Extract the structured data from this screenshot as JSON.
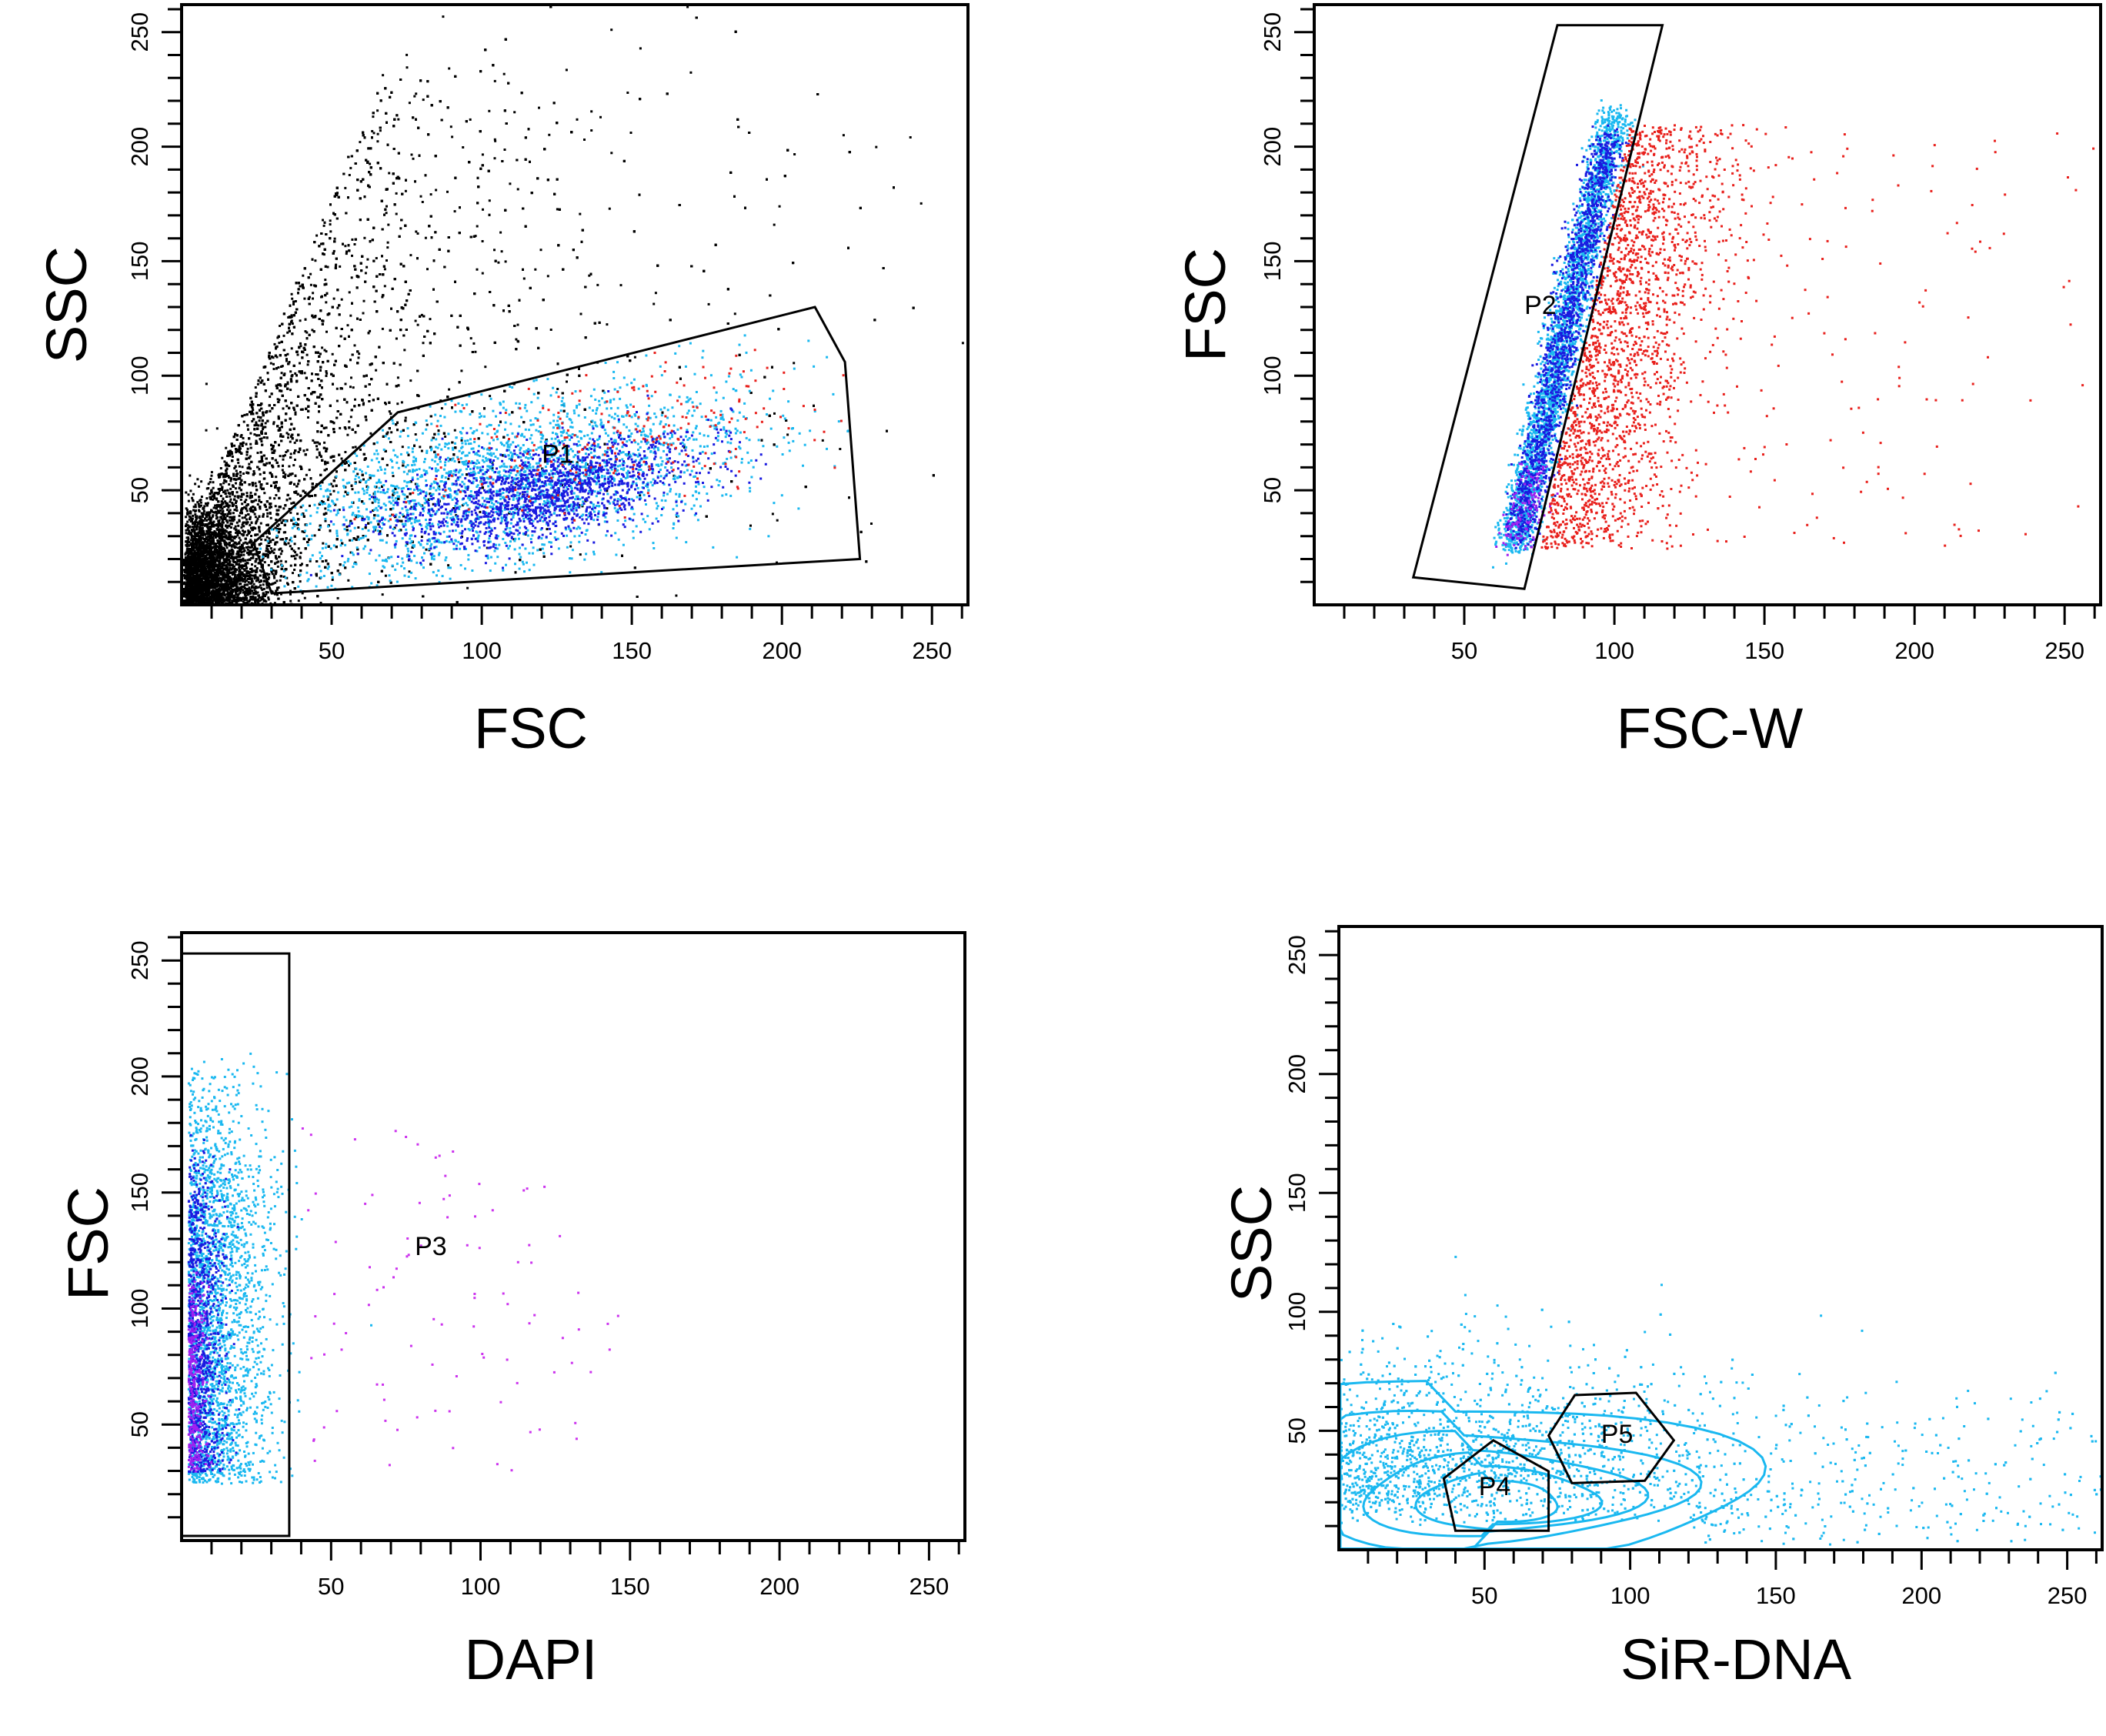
{
  "chart_data": [
    {
      "id": "a",
      "type": "scatter",
      "xlabel": "FSC",
      "ylabel": "SSC",
      "xlim": [
        0,
        262
      ],
      "ylim": [
        0,
        262
      ],
      "xticks": [
        50,
        100,
        150,
        200,
        250
      ],
      "yticks": [
        50,
        100,
        150,
        200,
        250
      ],
      "grid": false,
      "gates": [
        {
          "name": "P1",
          "label_at": [
            120,
            62
          ],
          "polygon": [
            [
              24,
              27
            ],
            [
              30,
              5
            ],
            [
              226,
              20
            ],
            [
              221,
              106
            ],
            [
              211,
              130
            ],
            [
              72,
              84
            ]
          ]
        }
      ],
      "series": [
        {
          "color": "#000000",
          "count": 9000,
          "distribution": "cloud",
          "center": [
            30,
            70
          ],
          "spread": [
            40,
            60
          ]
        },
        {
          "color": "#000000",
          "count": 2600,
          "distribution": "dense-corner",
          "center": [
            12,
            20
          ],
          "spread": [
            12,
            20
          ]
        },
        {
          "color": "#1ab8f0",
          "count": 2200,
          "distribution": "gated-P1",
          "center": [
            110,
            55
          ],
          "spread": [
            40,
            18
          ]
        },
        {
          "color": "#1a1ae0",
          "count": 1500,
          "distribution": "gated-P1",
          "center": [
            120,
            50
          ],
          "spread": [
            25,
            10
          ]
        },
        {
          "color": "#e8201c",
          "count": 220,
          "distribution": "gated-P1",
          "center": [
            150,
            75
          ],
          "spread": [
            35,
            15
          ]
        }
      ]
    },
    {
      "id": "b",
      "type": "scatter",
      "xlabel": "FSC-W",
      "ylabel": "FSC",
      "xlim": [
        0,
        262
      ],
      "ylim": [
        0,
        262
      ],
      "xticks": [
        50,
        100,
        150,
        200,
        250
      ],
      "yticks": [
        50,
        100,
        150,
        200,
        250
      ],
      "grid": false,
      "gates": [
        {
          "name": "P2",
          "label_at": [
            70,
            127
          ],
          "polygon": [
            [
              33,
              12
            ],
            [
              70,
              7
            ],
            [
              116,
              253
            ],
            [
              81,
              253
            ]
          ]
        }
      ],
      "series": [
        {
          "color": "#1ab8f0",
          "count": 2600,
          "distribution": "diagonal-band",
          "from": [
            66,
            25
          ],
          "to": [
            100,
            215
          ]
        },
        {
          "color": "#1a1ae0",
          "count": 1400,
          "distribution": "diagonal-band",
          "from": [
            68,
            30
          ],
          "to": [
            98,
            205
          ]
        },
        {
          "color": "#a020f0",
          "count": 120,
          "distribution": "diagonal-band",
          "from": [
            66,
            25
          ],
          "to": [
            75,
            60
          ]
        },
        {
          "color": "#e8201c",
          "count": 2200,
          "distribution": "right-spread",
          "from": [
            75,
            25
          ],
          "to": [
            240,
            210
          ]
        }
      ]
    },
    {
      "id": "c",
      "type": "scatter",
      "xlabel": "DAPI",
      "ylabel": "FSC",
      "xlim": [
        0,
        262
      ],
      "ylim": [
        0,
        262
      ],
      "xticks": [
        50,
        100,
        150,
        200,
        250
      ],
      "yticks": [
        50,
        100,
        150,
        200,
        250
      ],
      "grid": false,
      "gates": [
        {
          "name": "P3",
          "label_at": [
            78,
            123
          ],
          "polygon": [
            [
              0,
              2
            ],
            [
              36,
              2
            ],
            [
              36,
              253
            ],
            [
              0,
              253
            ]
          ]
        }
      ],
      "series": [
        {
          "color": "#1ab8f0",
          "count": 2400,
          "distribution": "left-column",
          "from": [
            2,
            25
          ],
          "to": [
            30,
            215
          ]
        },
        {
          "color": "#1a1ae0",
          "count": 900,
          "distribution": "left-column",
          "from": [
            2,
            30
          ],
          "to": [
            14,
            180
          ]
        },
        {
          "color": "#a020f0",
          "count": 300,
          "distribution": "left-column",
          "from": [
            2,
            30
          ],
          "to": [
            8,
            120
          ]
        },
        {
          "color": "#cc33ee",
          "count": 95,
          "distribution": "sparse",
          "from": [
            38,
            25
          ],
          "to": [
            150,
            180
          ]
        }
      ]
    },
    {
      "id": "d",
      "type": "scatter",
      "xlabel": "SiR-DNA",
      "ylabel": "SSC",
      "xlim": [
        0,
        262
      ],
      "ylim": [
        0,
        262
      ],
      "xticks": [
        50,
        100,
        150,
        200,
        250
      ],
      "yticks": [
        50,
        100,
        150,
        200,
        250
      ],
      "grid": false,
      "contours": true,
      "gates": [
        {
          "name": "P4",
          "label_at": [
            48,
            23
          ],
          "polygon": [
            [
              36,
              30
            ],
            [
              53,
              46
            ],
            [
              72,
              33
            ],
            [
              72,
              8
            ],
            [
              40,
              8
            ]
          ]
        },
        {
          "name": "P5",
          "label_at": [
            90,
            45
          ],
          "polygon": [
            [
              72,
              48
            ],
            [
              81,
              65
            ],
            [
              102,
              66
            ],
            [
              115,
              46
            ],
            [
              105,
              29
            ],
            [
              80,
              28
            ]
          ]
        }
      ],
      "series": [
        {
          "color": "#1ab8f0",
          "count": 2600,
          "distribution": "horizontal-cloud",
          "from": [
            0,
            5
          ],
          "to": [
            262,
            120
          ]
        }
      ]
    }
  ]
}
